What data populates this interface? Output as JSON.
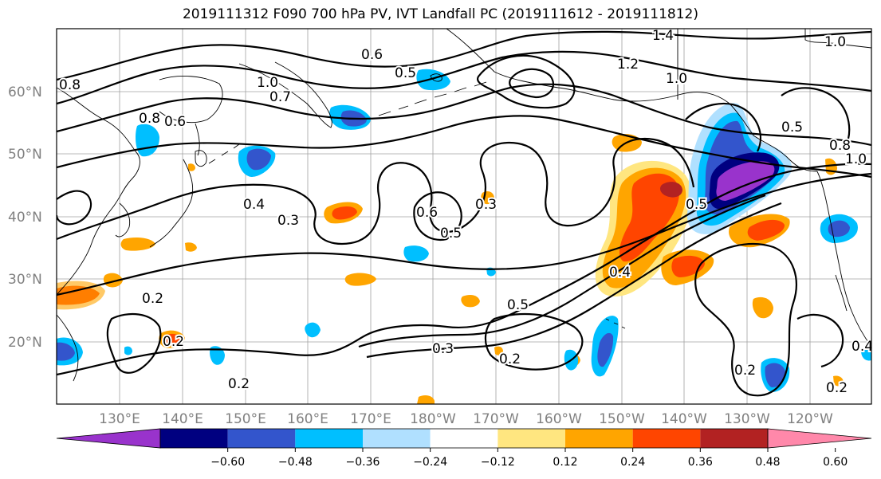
{
  "title": "2019111312 F090 700 hPa PV, IVT Landfall PC (2019111612 - 2019111812)",
  "map": {
    "lat_labels": [
      "60°N",
      "50°N",
      "40°N",
      "30°N",
      "20°N"
    ],
    "lon_labels": [
      "130°E",
      "140°E",
      "150°E",
      "160°E",
      "170°E",
      "180°W",
      "170°W",
      "160°W",
      "150°W",
      "140°W",
      "130°W",
      "120°W"
    ],
    "contour_labels": [
      {
        "text": "1.4"
      },
      {
        "text": "1.2"
      },
      {
        "text": "1.0"
      },
      {
        "text": "1.0"
      },
      {
        "text": "0.8"
      },
      {
        "text": "0.6"
      },
      {
        "text": "0.5"
      },
      {
        "text": "0.7"
      },
      {
        "text": "0.8"
      },
      {
        "text": "0.6"
      },
      {
        "text": "1.0"
      },
      {
        "text": "0.4"
      },
      {
        "text": "0.3"
      },
      {
        "text": "0.6"
      },
      {
        "text": "0.5"
      },
      {
        "text": "0.3"
      },
      {
        "text": "0.5"
      },
      {
        "text": "0.4"
      },
      {
        "text": "0.3"
      },
      {
        "text": "0.2"
      },
      {
        "text": "0.2"
      },
      {
        "text": "0.2"
      },
      {
        "text": "0.2"
      },
      {
        "text": "0.5"
      },
      {
        "text": "0.5"
      },
      {
        "text": "0.2"
      },
      {
        "text": "0.4"
      },
      {
        "text": "0.2"
      },
      {
        "text": "1.0"
      },
      {
        "text": "0.8"
      }
    ],
    "colors": {
      "purple": "#9933cc",
      "navy": "#000080",
      "blue": "#3355cc",
      "cyan": "#00bfff",
      "lightblue": "#b0e0ff",
      "white": "#ffffff",
      "yellow": "#ffe680",
      "orange": "#ffa500",
      "redorange": "#ff4500",
      "darkred": "#b22222",
      "pink": "#ff88aa"
    }
  },
  "colorbar": {
    "ticks": [
      "−0.60",
      "−0.48",
      "−0.36",
      "−0.24",
      "−0.12",
      "0.12",
      "0.24",
      "0.36",
      "0.48",
      "0.60"
    ],
    "colors": [
      "#9933cc",
      "#000080",
      "#3355cc",
      "#00bfff",
      "#b0e0ff",
      "#ffffff",
      "#ffe680",
      "#ffa500",
      "#ff4500",
      "#b22222",
      "#ff88aa"
    ]
  }
}
